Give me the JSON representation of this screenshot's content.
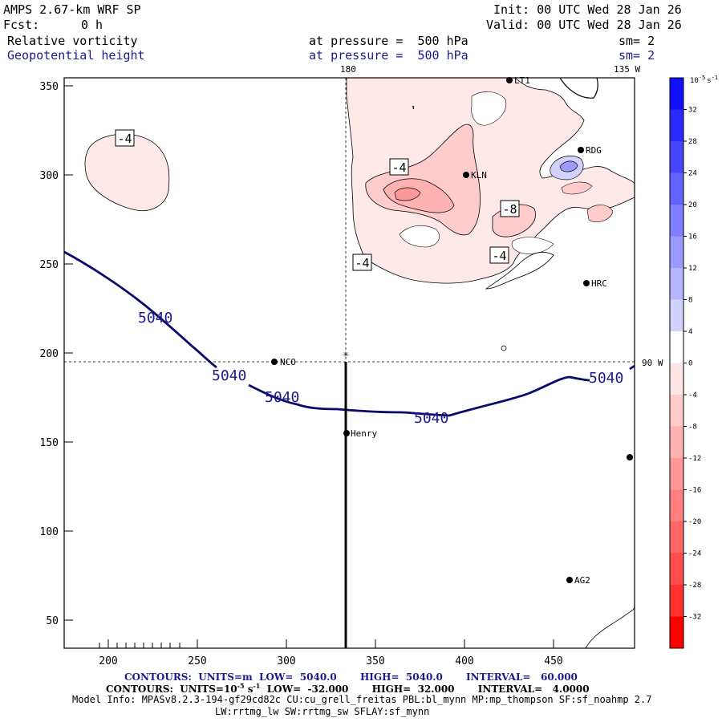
{
  "header": {
    "model": "AMPS 2.67-km WRF SP",
    "fcst_label": "Fcst:",
    "fcst_value": "0 h",
    "init": "Init: 00 UTC Wed 28 Jan 26",
    "valid": "Valid: 00 UTC Wed 28 Jan 26",
    "field1_name": "Relative vorticity",
    "field1_level": "at pressure =  500 hPa",
    "field1_smooth": "sm= 2",
    "field2_name": "Geopotential height",
    "field2_level": "at pressure =  500 hPa",
    "field2_smooth": "sm= 2"
  },
  "map": {
    "lon_labels": [
      "180",
      "135 W",
      "90 W"
    ],
    "x_ticks": [
      "200",
      "250",
      "300",
      "350",
      "400",
      "450"
    ],
    "y_ticks": [
      "350",
      "300",
      "250",
      "200",
      "150",
      "100",
      "50"
    ],
    "stations": [
      "RDG",
      "KLN",
      "HRC",
      "NCO",
      "Henry",
      "AG2",
      "LT1"
    ],
    "height_contour_labels": [
      "5040",
      "5040",
      "5040",
      "5040",
      "5040"
    ],
    "vorticity_contour_labels": [
      "-4",
      "-4",
      "-4",
      "-8",
      "-4"
    ]
  },
  "colorbar": {
    "units_base": "10",
    "units_exp": "-5",
    "units_suffix": "s",
    "units_suffix_exp": "-1",
    "labels": [
      "32",
      "28",
      "24",
      "20",
      "16",
      "12",
      "8",
      "4",
      "0",
      "-4",
      "-8",
      "-12",
      "-16",
      "-20",
      "-24",
      "-28",
      "-32"
    ],
    "colors": [
      "#1010ff",
      "#2a2aff",
      "#4646ff",
      "#6262ff",
      "#7e7eff",
      "#9a9aff",
      "#b6b6ff",
      "#d2d2ff",
      "#ffffff",
      "#ffe6e6",
      "#ffcccc",
      "#ffb2b2",
      "#ff9999",
      "#ff7f7f",
      "#ff6666",
      "#ff4c4c",
      "#ff3232",
      "#ff0000"
    ]
  },
  "footer": {
    "contours1_prefix": "CONTOURS:  UNITS=m  LOW=  5040.0       HIGH=  5040.0       INTERVAL=   60.000",
    "contours2_prefix": "CONTOURS:  UNITS=10",
    "contours2_exp1": "-5",
    "contours2_mid": " s",
    "contours2_exp2": "-1",
    "contours2_rest": "  LOW=  -32.000       HIGH=  32.000       INTERVAL=   4.0000",
    "model_info": "Model Info: MPASv8.2.3-194-gf29cd82c CU:cu_grell_freitas PBL:bl_mynn MP:mp_thompson SF:sf_noahmp 2.7",
    "model_info2": "LW:rrtmg_lw SW:rrtmg_sw SFLAY:sf_mynn"
  }
}
